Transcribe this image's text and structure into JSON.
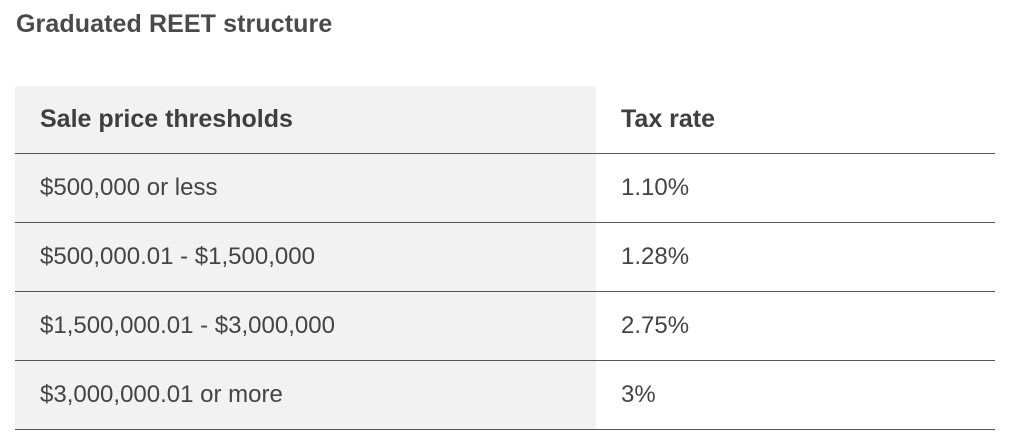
{
  "title": "Graduated REET structure",
  "table": {
    "headers": {
      "threshold": "Sale price thresholds",
      "rate": "Tax rate"
    },
    "rows": [
      {
        "threshold": "$500,000 or less",
        "rate": "1.10%"
      },
      {
        "threshold": "$500,000.01 - $1,500,000",
        "rate": "1.28%"
      },
      {
        "threshold": "$1,500,000.01 - $3,000,000",
        "rate": "2.75%"
      },
      {
        "threshold": "$3,000,000.01 or more",
        "rate": "3%"
      }
    ]
  },
  "colors": {
    "shaded_column": "#f2f2f2",
    "rule": "#555555",
    "text": "#3f3f3f"
  }
}
